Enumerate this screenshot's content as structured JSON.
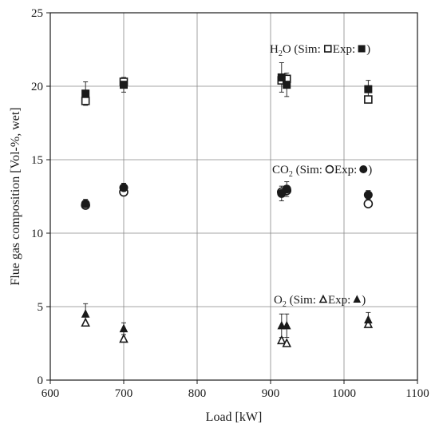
{
  "chart_data": {
    "type": "scatter",
    "xlabel": "Load [kW]",
    "ylabel": "Flue gas composition [Vol-%, wet]",
    "xlim": [
      600,
      1100
    ],
    "ylim": [
      0,
      25
    ],
    "xticks": [
      600,
      700,
      800,
      900,
      1000,
      1100
    ],
    "yticks": [
      0,
      5,
      10,
      15,
      20,
      25
    ],
    "grid": true,
    "species": [
      {
        "name": "H2O",
        "label_main": "H",
        "label_sub": "2",
        "label_tail": "O (Sim:",
        "label_mid": " Exp:",
        "label_end": ")",
        "sim_marker": "open-square",
        "exp_marker": "filled-square",
        "sim": {
          "x": [
            648,
            700,
            915,
            922,
            1033
          ],
          "y": [
            19.0,
            20.3,
            20.4,
            20.5,
            19.1
          ]
        },
        "exp": {
          "x": [
            648,
            700,
            915,
            922,
            1033
          ],
          "y": [
            19.5,
            20.1,
            20.6,
            20.1,
            19.8
          ],
          "err": [
            0.8,
            0.5,
            1.0,
            0.8,
            0.6
          ]
        }
      },
      {
        "name": "CO2",
        "label_main": "CO",
        "label_sub": "2",
        "label_tail": " (Sim:",
        "label_mid": " Exp:",
        "label_end": ")",
        "sim_marker": "open-circle",
        "exp_marker": "filled-circle",
        "sim": {
          "x": [
            648,
            700,
            915,
            922,
            1033
          ],
          "y": [
            11.9,
            12.8,
            12.8,
            12.9,
            12.0
          ]
        },
        "exp": {
          "x": [
            648,
            700,
            915,
            922,
            1033
          ],
          "y": [
            12.0,
            13.1,
            12.7,
            13.0,
            12.6
          ],
          "err": [
            0.3,
            0.3,
            0.5,
            0.5,
            0.3
          ]
        }
      },
      {
        "name": "O2",
        "label_main": "O",
        "label_sub": "2",
        "label_tail": " (Sim:",
        "label_mid": " Exp:",
        "label_end": ")",
        "sim_marker": "open-triangle",
        "exp_marker": "filled-triangle",
        "sim": {
          "x": [
            648,
            700,
            915,
            922,
            1033
          ],
          "y": [
            3.9,
            2.8,
            2.7,
            2.5,
            3.8
          ]
        },
        "exp": {
          "x": [
            648,
            700,
            915,
            922,
            1033
          ],
          "y": [
            4.5,
            3.5,
            3.7,
            3.7,
            4.1
          ],
          "err": [
            0.7,
            0.4,
            0.8,
            0.8,
            0.5
          ]
        }
      }
    ],
    "colors": {
      "marker": "#1a1a1a",
      "grid": "#888888",
      "frame": "#1a1a1a"
    }
  }
}
